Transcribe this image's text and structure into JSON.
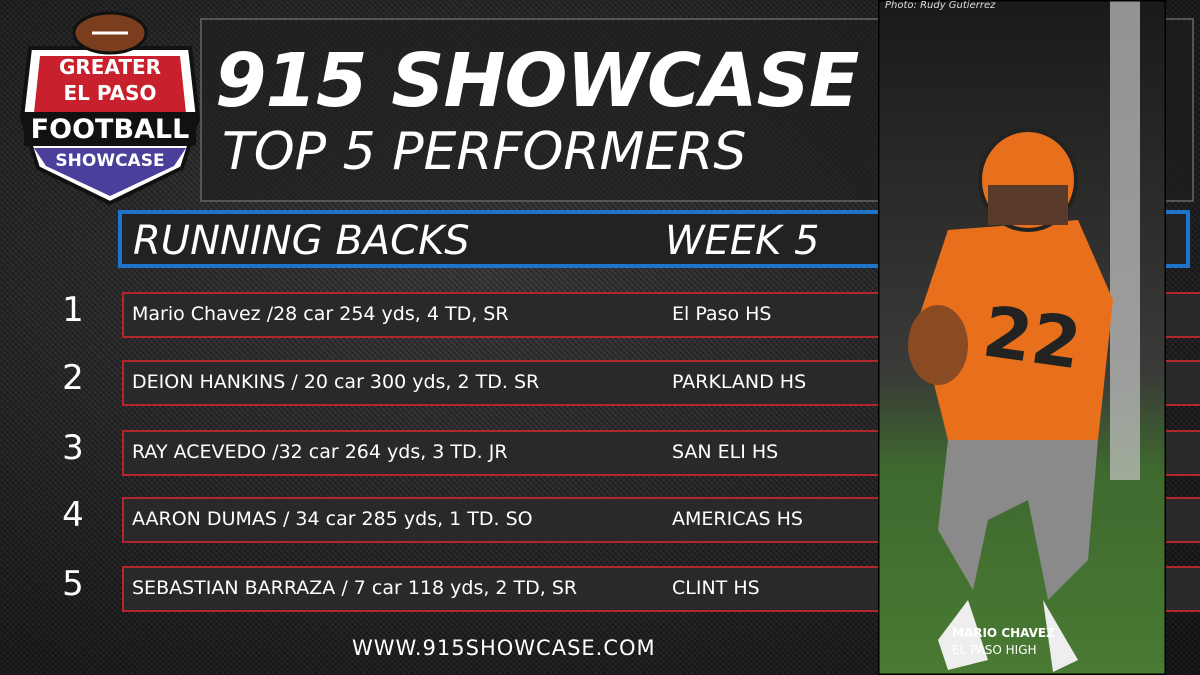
{
  "logo": {
    "line1": "GREATER",
    "line2": "EL PASO",
    "line3": "FOOTBALL",
    "line4": "SHOWCASE"
  },
  "header": {
    "title": "915 SHOWCASE",
    "subtitle": "TOP 5 PERFORMERS"
  },
  "section": {
    "position": "RUNNING BACKS",
    "week": "WEEK 5"
  },
  "rows": [
    {
      "rank": 1,
      "player": "Mario Chavez /28 car 254 yds, 4 TD, SR",
      "school": "El Paso HS"
    },
    {
      "rank": 2,
      "player": "DEION HANKINS / 20 car 300 yds, 2 TD. SR",
      "school": "PARKLAND HS"
    },
    {
      "rank": 3,
      "player": "RAY ACEVEDO /32 car 264 yds, 3 TD. JR",
      "school": "SAN ELI HS"
    },
    {
      "rank": 4,
      "player": "AARON DUMAS / 34 car 285 yds, 1 TD. SO",
      "school": "AMERICAS HS"
    },
    {
      "rank": 5,
      "player": "SEBASTIAN BARRAZA / 7 car 118 yds, 2 TD, SR",
      "school": "CLINT HS"
    }
  ],
  "footer": {
    "url": "WWW.915SHOWCASE.COM"
  },
  "photo": {
    "credit": "Photo: Rudy Gutierrez",
    "caption_name": "MARIO CHAVEZ",
    "caption_school": "EL PASO HIGH"
  }
}
